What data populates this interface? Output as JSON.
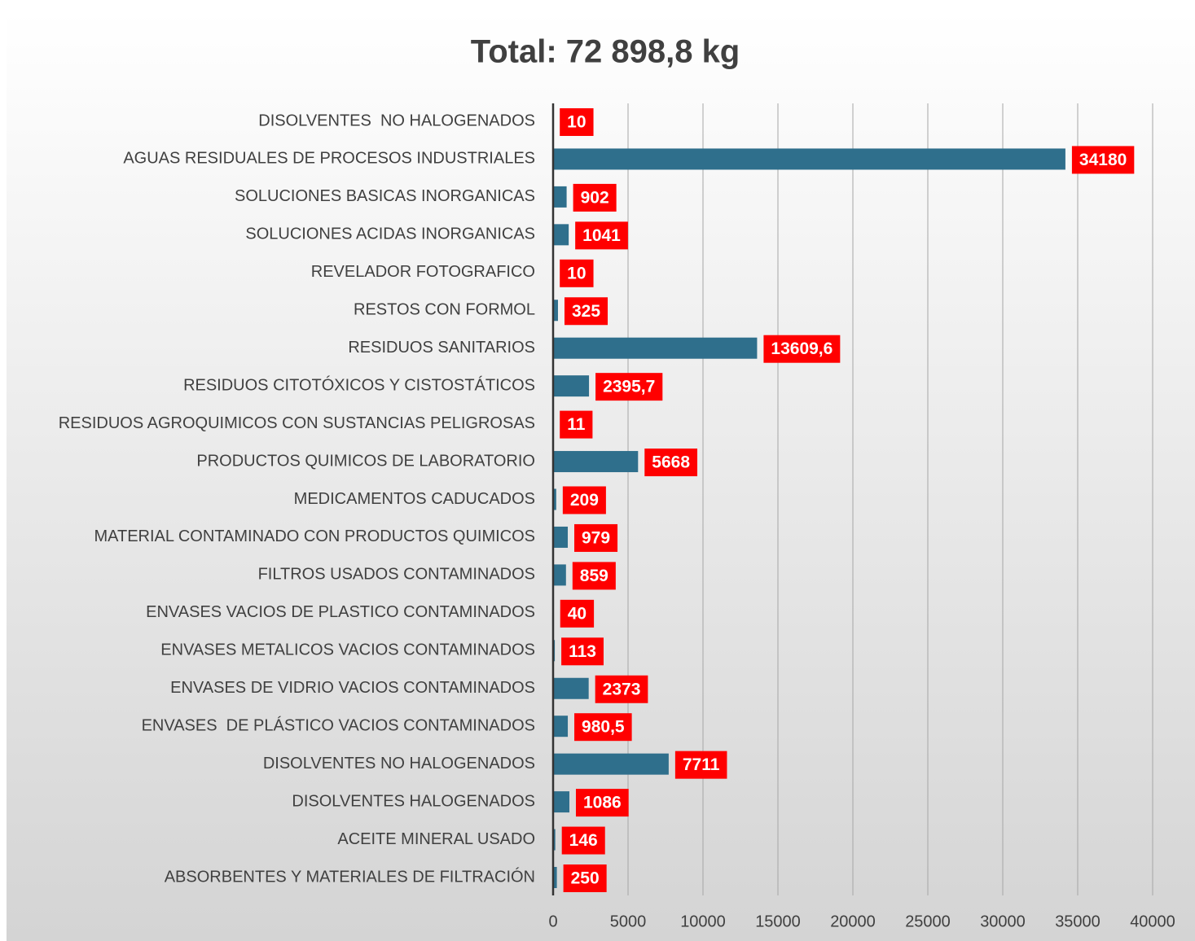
{
  "chart_data": {
    "type": "bar",
    "orientation": "horizontal",
    "title": "Total: 72 898,8 kg",
    "categories": [
      "DISOLVENTES  NO HALOGENADOS",
      "AGUAS RESIDUALES DE PROCESOS INDUSTRIALES",
      "SOLUCIONES BASICAS INORGANICAS",
      "SOLUCIONES ACIDAS INORGANICAS",
      "REVELADOR FOTOGRAFICO",
      "RESTOS CON FORMOL",
      "RESIDUOS SANITARIOS",
      "RESIDUOS CITOTÓXICOS Y CISTOSTÁTICOS",
      "RESIDUOS AGROQUIMICOS CON SUSTANCIAS PELIGROSAS",
      "PRODUCTOS QUIMICOS DE LABORATORIO",
      "MEDICAMENTOS CADUCADOS",
      "MATERIAL CONTAMINADO CON PRODUCTOS QUIMICOS",
      "FILTROS USADOS CONTAMINADOS",
      "ENVASES VACIOS DE PLASTICO CONTAMINADOS",
      "ENVASES METALICOS VACIOS CONTAMINADOS",
      "ENVASES DE VIDRIO VACIOS CONTAMINADOS",
      "ENVASES  DE PLÁSTICO VACIOS CONTAMINADOS",
      "DISOLVENTES NO HALOGENADOS",
      "DISOLVENTES HALOGENADOS",
      "ACEITE MINERAL USADO",
      "ABSORBENTES Y MATERIALES DE FILTRACIÓN"
    ],
    "values": [
      10,
      34180,
      902,
      1041,
      10,
      325,
      13609.6,
      2395.7,
      11,
      5668,
      209,
      979,
      859,
      40,
      113,
      2373,
      980.5,
      7711,
      1086,
      146,
      250
    ],
    "value_labels": [
      "10",
      "34180",
      "902",
      "1041",
      "10",
      "325",
      "13609,6",
      "2395,7",
      "11",
      "5668",
      "209",
      "979",
      "859",
      "40",
      "113",
      "2373",
      "980,5",
      "7711",
      "1086",
      "146",
      "250"
    ],
    "color": "#2f6f8c",
    "label_color": "#ff0000",
    "xlim": [
      0,
      40000
    ],
    "xticks": [
      0,
      5000,
      10000,
      15000,
      20000,
      25000,
      30000,
      35000,
      40000
    ],
    "grid": true
  }
}
